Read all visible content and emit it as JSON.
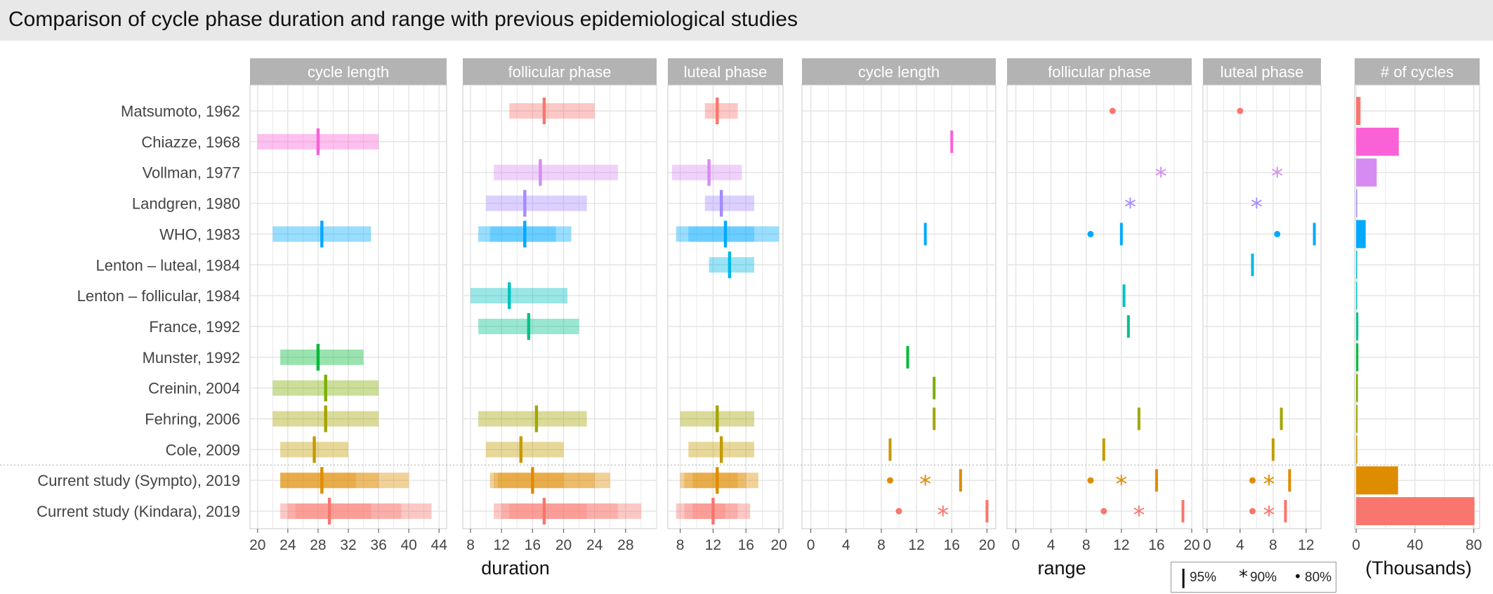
{
  "title": "Comparison of cycle phase duration and range with previous epidemiological studies",
  "colors": {
    "strip": "#b3b3b3",
    "strip_text": "#ffffff",
    "grid": "#e3e3e3",
    "panel_border": "#c9c9c9",
    "axis_text": "#444444",
    "title_bar": "#e8e8e8"
  },
  "x_titles": {
    "duration": "duration",
    "range": "range",
    "cycles": "(Thousands)"
  },
  "legend": {
    "items": [
      {
        "symbol": "|",
        "label": "95%"
      },
      {
        "symbol": "*",
        "label": "90%"
      },
      {
        "symbol": "•",
        "label": "80%"
      }
    ]
  },
  "chart_data": {
    "type": "faceted-range",
    "studies": [
      {
        "name": "Matsumoto, 1962",
        "color": "#f8766d"
      },
      {
        "name": "Chiazze, 1968",
        "color": "#fb61d7"
      },
      {
        "name": "Vollman, 1977",
        "color": "#d68bf2"
      },
      {
        "name": "Landgren, 1980",
        "color": "#a58aff"
      },
      {
        "name": "WHO, 1983",
        "color": "#00a9ff"
      },
      {
        "name": "Lenton – luteal, 1984",
        "color": "#00b8e7"
      },
      {
        "name": "Lenton – follicular, 1984",
        "color": "#00c1c3"
      },
      {
        "name": "France, 1992",
        "color": "#00c08b"
      },
      {
        "name": "Munster, 1992",
        "color": "#00ba38"
      },
      {
        "name": "Creinin, 2004",
        "color": "#7cae00"
      },
      {
        "name": "Fehring, 2006",
        "color": "#a3a500"
      },
      {
        "name": "Cole, 2009",
        "color": "#c49a00"
      },
      {
        "name": "Current study (Sympto), 2019",
        "color": "#de8c00"
      },
      {
        "name": "Current study (Kindara), 2019",
        "color": "#f8766d"
      }
    ],
    "study_colors_note": "",
    "duration_facets": [
      {
        "label": "cycle length",
        "xlim": [
          19,
          45
        ],
        "ticks": [
          20,
          24,
          28,
          32,
          36,
          40,
          44
        ],
        "rows": [
          null,
          {
            "center": 28,
            "bands": [
              [
                20,
                36
              ]
            ]
          },
          null,
          null,
          {
            "center": 28.5,
            "bands": [
              [
                22,
                35
              ]
            ]
          },
          null,
          null,
          null,
          {
            "center": 28,
            "bands": [
              [
                23,
                34
              ]
            ]
          },
          {
            "center": 29,
            "bands": [
              [
                22,
                36
              ]
            ]
          },
          {
            "center": 29,
            "bands": [
              [
                22,
                36
              ]
            ]
          },
          {
            "center": 27.5,
            "bands": [
              [
                23,
                32
              ]
            ]
          },
          {
            "center": 28.5,
            "bands": [
              [
                23,
                40
              ],
              [
                23,
                36
              ],
              [
                23,
                33
              ]
            ]
          },
          {
            "center": 29.5,
            "bands": [
              [
                23,
                43
              ],
              [
                24,
                39
              ],
              [
                25,
                35
              ]
            ]
          }
        ]
      },
      {
        "label": "follicular phase",
        "xlim": [
          7,
          32
        ],
        "ticks": [
          8,
          12,
          16,
          20,
          24,
          28
        ],
        "rows": [
          {
            "center": 17.5,
            "bands": [
              [
                13,
                24
              ]
            ]
          },
          null,
          {
            "center": 17,
            "bands": [
              [
                11,
                27
              ]
            ]
          },
          {
            "center": 15,
            "bands": [
              [
                10,
                23
              ]
            ]
          },
          {
            "center": 15,
            "bands": [
              [
                9,
                21
              ],
              [
                10.5,
                19
              ]
            ]
          },
          null,
          {
            "center": 13,
            "bands": [
              [
                8,
                20.5
              ]
            ]
          },
          {
            "center": 15.5,
            "bands": [
              [
                9,
                22
              ]
            ]
          },
          null,
          null,
          {
            "center": 16.5,
            "bands": [
              [
                9,
                23
              ]
            ]
          },
          {
            "center": 14.5,
            "bands": [
              [
                10,
                20
              ]
            ]
          },
          {
            "center": 16,
            "bands": [
              [
                10.5,
                26
              ],
              [
                11,
                24
              ],
              [
                11.5,
                20
              ]
            ]
          },
          {
            "center": 17.5,
            "bands": [
              [
                11,
                30
              ],
              [
                12,
                27
              ],
              [
                13,
                23
              ]
            ]
          }
        ]
      },
      {
        "label": "luteal phase",
        "xlim": [
          6.5,
          20.5
        ],
        "ticks": [
          8,
          12,
          16,
          20
        ],
        "rows": [
          {
            "center": 12.5,
            "bands": [
              [
                11,
                15
              ]
            ]
          },
          null,
          {
            "center": 11.5,
            "bands": [
              [
                7,
                15.5
              ]
            ]
          },
          {
            "center": 13,
            "bands": [
              [
                11,
                17
              ]
            ]
          },
          {
            "center": 13.5,
            "bands": [
              [
                7.5,
                20
              ],
              [
                9,
                17
              ]
            ]
          },
          {
            "center": 14,
            "bands": [
              [
                11.5,
                17
              ]
            ]
          },
          null,
          null,
          null,
          null,
          {
            "center": 12.5,
            "bands": [
              [
                8,
                17
              ]
            ]
          },
          {
            "center": 13,
            "bands": [
              [
                9,
                17
              ]
            ]
          },
          {
            "center": 12.5,
            "bands": [
              [
                8,
                17.5
              ],
              [
                8.5,
                16
              ],
              [
                9.5,
                15
              ]
            ]
          },
          {
            "center": 12,
            "bands": [
              [
                7.5,
                16.5
              ],
              [
                8.5,
                15
              ],
              [
                9.5,
                13.5
              ]
            ]
          }
        ]
      }
    ],
    "range_facets": [
      {
        "label": "cycle length",
        "xlim": [
          -1,
          21
        ],
        "ticks": [
          0,
          4,
          8,
          12,
          16,
          20
        ],
        "rows": [
          null,
          {
            "r95": 16
          },
          null,
          null,
          {
            "r95": 13
          },
          null,
          null,
          null,
          {
            "r95": 11
          },
          {
            "r95": 14
          },
          {
            "r95": 14
          },
          {
            "r95": 9
          },
          {
            "r80": 9,
            "r90": 13,
            "r95": 17
          },
          {
            "r80": 10,
            "r90": 15,
            "r95": 20
          }
        ]
      },
      {
        "label": "follicular phase",
        "xlim": [
          -1,
          20
        ],
        "ticks": [
          0,
          4,
          8,
          12,
          16,
          20
        ],
        "rows": [
          {
            "r80": 11
          },
          null,
          {
            "r90": 16.5
          },
          {
            "r90": 13
          },
          {
            "r80": 8.5,
            "r95": 12
          },
          null,
          {
            "r95": 12.3
          },
          {
            "r95": 12.8
          },
          null,
          null,
          {
            "r95": 14
          },
          {
            "r95": 10
          },
          {
            "r80": 8.5,
            "r90": 12,
            "r95": 16
          },
          {
            "r80": 10,
            "r90": 14,
            "r95": 19
          }
        ]
      },
      {
        "label": "luteal phase",
        "xlim": [
          -0.5,
          13.8
        ],
        "ticks": [
          0,
          4,
          8,
          12
        ],
        "rows": [
          {
            "r80": 4
          },
          null,
          {
            "r90": 8.5
          },
          {
            "r90": 6
          },
          {
            "r80": 8.5,
            "r95": 13
          },
          {
            "r95": 5.5
          },
          null,
          null,
          null,
          null,
          {
            "r95": 9
          },
          {
            "r95": 8
          },
          {
            "r80": 5.5,
            "r90": 7.5,
            "r95": 10
          },
          {
            "r80": 5.5,
            "r90": 7.5,
            "r95": 9.5
          }
        ]
      }
    ],
    "cycles_facet": {
      "label": "# of cycles",
      "xlim": [
        -1,
        84
      ],
      "ticks": [
        0,
        40,
        80
      ],
      "values": [
        3,
        29,
        14,
        0,
        6.5,
        0.2,
        0.2,
        1.5,
        1.5,
        1.2,
        1,
        0.8,
        28.5,
        80.5
      ]
    }
  }
}
